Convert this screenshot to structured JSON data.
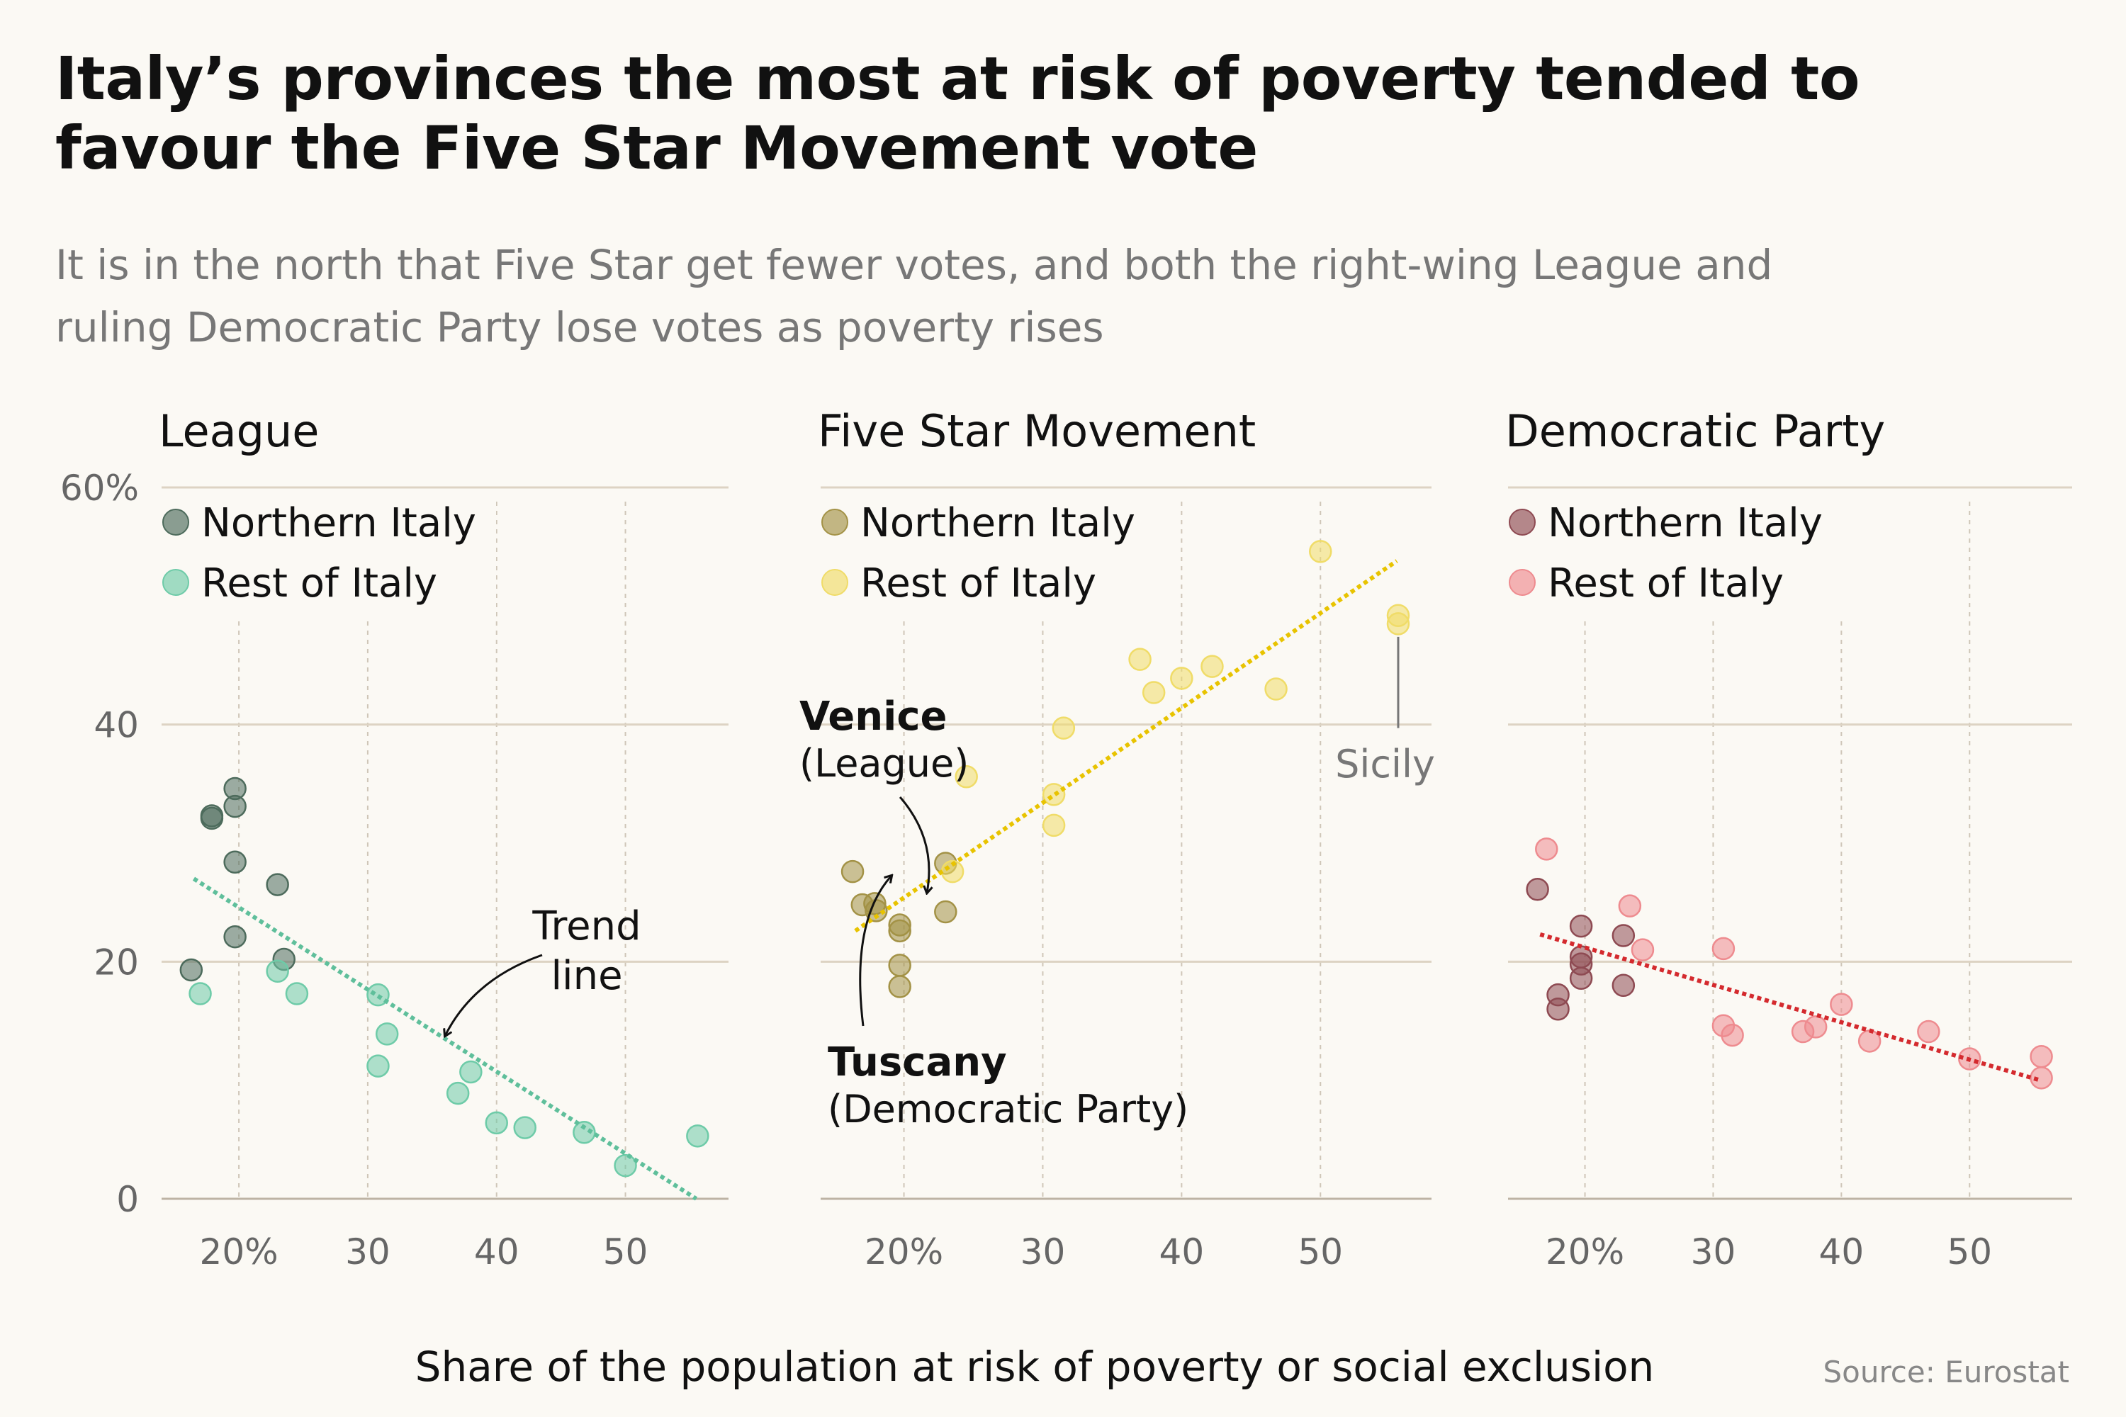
{
  "title": "Italy’s provinces the most at risk of poverty tended to favour the Five Star Movement vote",
  "subtitle": "It is in the north that Five Star get fewer votes, and both the right-wing League and ruling Democratic Party lose votes as poverty rises",
  "xlabel": "Share of the population at risk of poverty or social exclusion",
  "source": "Source: Eurostat",
  "legend": {
    "north": "Northern Italy",
    "rest": "Rest of Italy"
  },
  "chart_data": [
    {
      "type": "scatter",
      "title": "League",
      "colors": {
        "north": "#4d6b5c",
        "rest": "#6ecba8",
        "trend": "#5fbf9b"
      },
      "xlim": [
        14,
        58
      ],
      "ylim": [
        0,
        60
      ],
      "xticks": [
        20,
        30,
        40,
        50
      ],
      "xtick_labels": [
        "20%",
        "30",
        "40",
        "50"
      ],
      "yticks": [
        0,
        20,
        40,
        60
      ],
      "ytick_labels": [
        "0",
        "20",
        "40",
        "60%"
      ],
      "trend": [
        [
          16.5,
          27.0
        ],
        [
          55.5,
          0.0
        ]
      ],
      "series": [
        {
          "name": "Northern Italy",
          "points": [
            [
              16.3,
              19.3
            ],
            [
              17.9,
              32.3
            ],
            [
              17.9,
              32.1
            ],
            [
              19.7,
              34.6
            ],
            [
              19.7,
              33.1
            ],
            [
              19.7,
              28.4
            ],
            [
              19.7,
              22.1
            ],
            [
              23.0,
              26.5
            ],
            [
              23.5,
              20.2
            ]
          ]
        },
        {
          "name": "Rest of Italy",
          "points": [
            [
              17.0,
              17.3
            ],
            [
              23.0,
              19.2
            ],
            [
              24.5,
              17.3
            ],
            [
              30.8,
              17.2
            ],
            [
              31.5,
              13.9
            ],
            [
              30.8,
              11.2
            ],
            [
              37.0,
              8.9
            ],
            [
              38.0,
              10.7
            ],
            [
              40.0,
              6.4
            ],
            [
              42.2,
              6.0
            ],
            [
              46.8,
              5.6
            ],
            [
              50.0,
              2.8
            ],
            [
              55.6,
              5.3
            ]
          ]
        }
      ],
      "annotations": [
        {
          "lines": [
            "Trend",
            "line"
          ]
        }
      ]
    },
    {
      "type": "scatter",
      "title": "Five Star Movement",
      "colors": {
        "north": "#a39246",
        "rest": "#f0dc68",
        "trend": "#e8c300"
      },
      "xlim": [
        14,
        58
      ],
      "ylim": [
        0,
        60
      ],
      "xticks": [
        20,
        30,
        40,
        50
      ],
      "xtick_labels": [
        "20%",
        "30",
        "40",
        "50"
      ],
      "yticks": [
        0,
        20,
        40,
        60
      ],
      "trend": [
        [
          16.5,
          22.6
        ],
        [
          55.5,
          53.8
        ]
      ],
      "series": [
        {
          "name": "Northern Italy",
          "points": [
            [
              16.3,
              27.6
            ],
            [
              17.0,
              24.8
            ],
            [
              17.9,
              24.9
            ],
            [
              18.0,
              24.3
            ],
            [
              19.7,
              23.1
            ],
            [
              19.7,
              22.6
            ],
            [
              19.7,
              19.7
            ],
            [
              19.7,
              17.9
            ],
            [
              23.0,
              28.3
            ],
            [
              23.0,
              24.2
            ]
          ]
        },
        {
          "name": "Rest of Italy",
          "points": [
            [
              23.5,
              27.6
            ],
            [
              24.5,
              35.6
            ],
            [
              30.8,
              34.1
            ],
            [
              30.8,
              31.5
            ],
            [
              31.5,
              39.7
            ],
            [
              37.0,
              45.5
            ],
            [
              38.0,
              42.7
            ],
            [
              40.0,
              43.9
            ],
            [
              42.2,
              44.9
            ],
            [
              46.8,
              43.0
            ],
            [
              50.0,
              54.6
            ],
            [
              55.6,
              49.2
            ],
            [
              55.6,
              48.5
            ]
          ]
        }
      ],
      "annotations": [
        {
          "bold": "Venice",
          "text": "(League)"
        },
        {
          "bold": "Tuscany",
          "text": "(Democratic Party)"
        },
        {
          "text": "Sicily"
        }
      ]
    },
    {
      "type": "scatter",
      "title": "Democratic Party",
      "colors": {
        "north": "#8e4a52",
        "rest": "#ee8b8f",
        "trend": "#d42a2e"
      },
      "xlim": [
        14,
        58
      ],
      "ylim": [
        0,
        60
      ],
      "xticks": [
        20,
        30,
        40,
        50
      ],
      "xtick_labels": [
        "20%",
        "30",
        "40",
        "50"
      ],
      "yticks": [
        0,
        20,
        40,
        60
      ],
      "trend": [
        [
          16.5,
          22.3
        ],
        [
          55.5,
          10.0
        ]
      ],
      "series": [
        {
          "name": "Northern Italy",
          "points": [
            [
              16.3,
              26.1
            ],
            [
              17.9,
              17.2
            ],
            [
              17.9,
              16.0
            ],
            [
              19.7,
              23.0
            ],
            [
              19.7,
              20.4
            ],
            [
              19.7,
              19.8
            ],
            [
              19.7,
              18.6
            ],
            [
              23.0,
              22.2
            ],
            [
              23.0,
              18.0
            ]
          ]
        },
        {
          "name": "Rest of Italy",
          "points": [
            [
              17.0,
              29.5
            ],
            [
              23.5,
              24.7
            ],
            [
              24.5,
              21.0
            ],
            [
              30.8,
              21.1
            ],
            [
              30.8,
              14.6
            ],
            [
              31.5,
              13.8
            ],
            [
              37.0,
              14.1
            ],
            [
              38.0,
              14.5
            ],
            [
              40.0,
              16.4
            ],
            [
              42.2,
              13.3
            ],
            [
              46.8,
              14.1
            ],
            [
              50.0,
              11.8
            ],
            [
              55.6,
              12.0
            ],
            [
              55.6,
              10.2
            ]
          ]
        }
      ],
      "annotations": []
    }
  ]
}
